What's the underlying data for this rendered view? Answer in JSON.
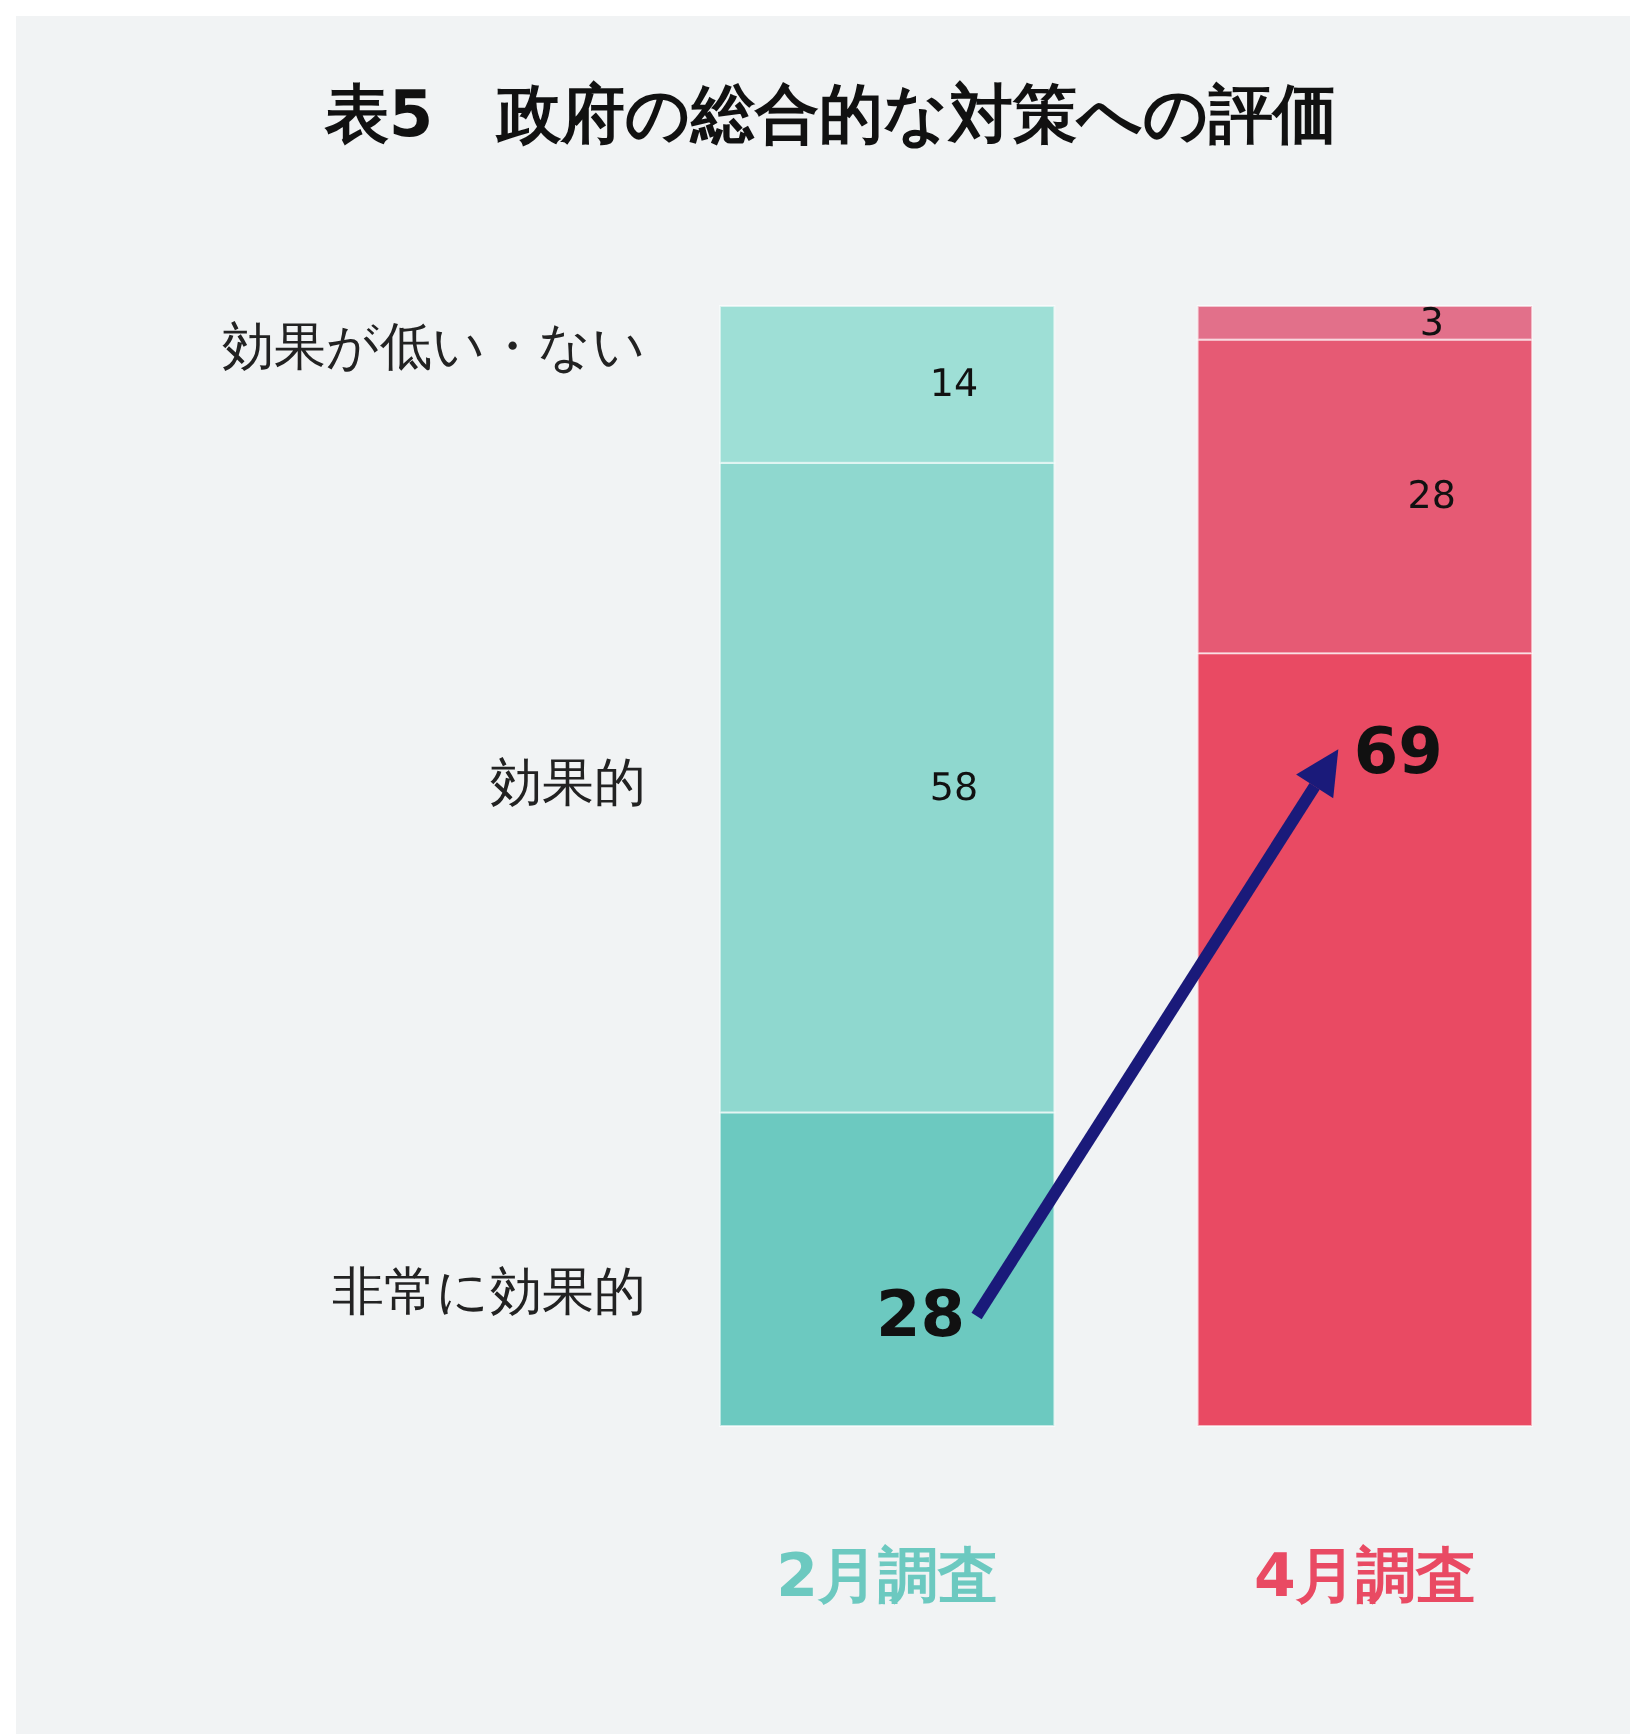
{
  "chart_data": {
    "type": "bar",
    "title": "表5　政府の総合的な対策への評価",
    "categories": [
      "2月調査",
      "4月調査"
    ],
    "stacked": true,
    "data_labels": true,
    "series": [
      {
        "name": "非常に効果的",
        "colors": [
          "#6cc9c0",
          "#e94a63"
        ],
        "values": [
          28,
          69
        ]
      },
      {
        "name": "効果的",
        "colors": [
          "#8fd8cf",
          "#e65a74"
        ],
        "values": [
          58,
          28
        ]
      },
      {
        "name": "効果が低い・ない",
        "colors": [
          "#9edfd6",
          "#e2708a"
        ],
        "values": [
          14,
          3
        ]
      }
    ]
  }
}
